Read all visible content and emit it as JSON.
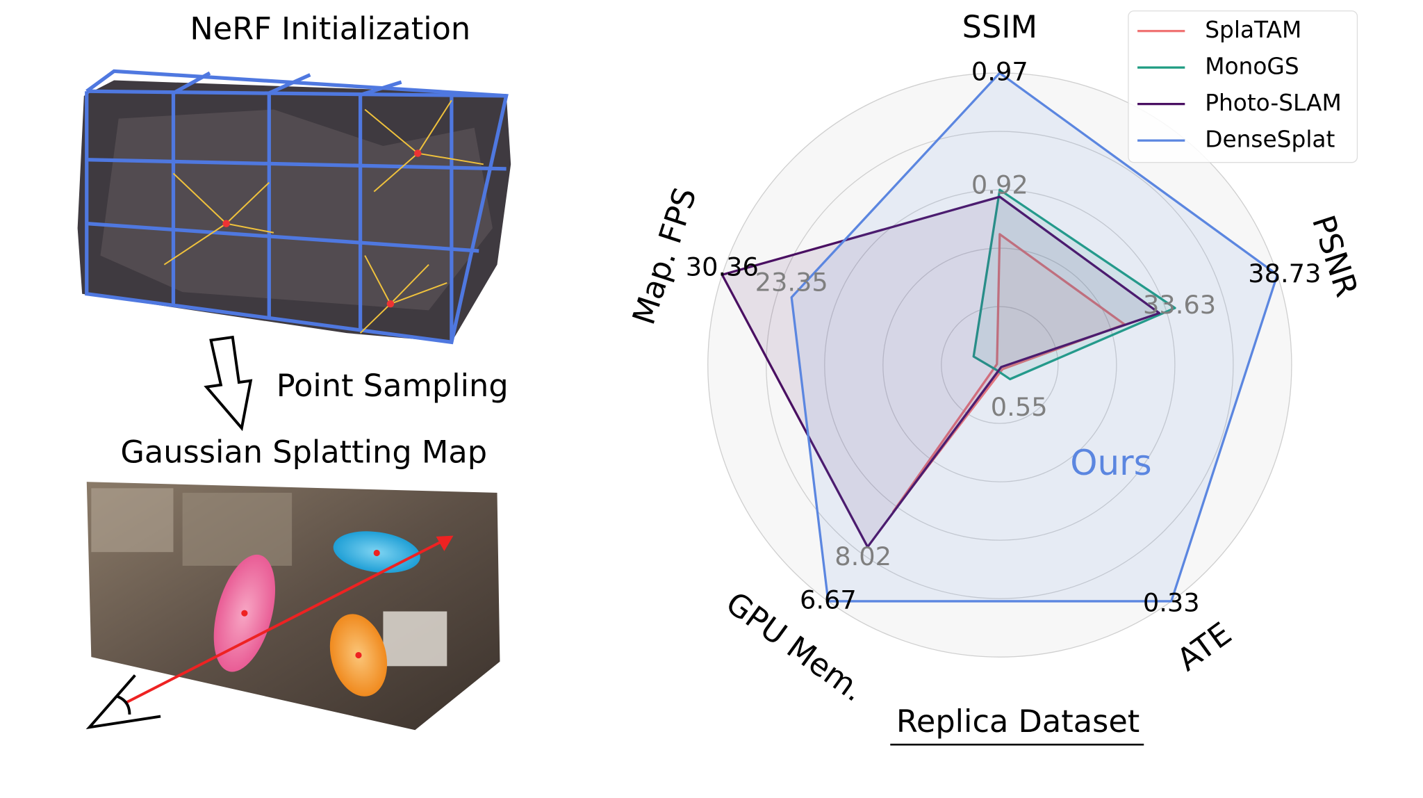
{
  "diagram": {
    "nerf_title": "NeRF Initialization",
    "sampling_label": "Point Sampling",
    "map_title": "Gaussian Splatting Map"
  },
  "chart_data": {
    "type": "radar",
    "title": "Replica Dataset",
    "annotation": "Ours",
    "categories": [
      "SSIM",
      "PSNR",
      "ATE",
      "GPU Mem.",
      "Map. FPS"
    ],
    "rlims": [
      [
        0.845,
        0.97
      ],
      [
        24.9,
        38.73
      ],
      [
        0.564,
        0.33
      ],
      [
        12.54,
        6.67
      ],
      [
        2.32,
        30.36
      ]
    ],
    "grid": true,
    "legend": "upper right",
    "series": [
      {
        "name": "SplaTAM",
        "color": "#f07474",
        "values": [
          0.901,
          31.12,
          0.56,
          8.9,
          2.6
        ]
      },
      {
        "name": "MonoGS",
        "color": "#1f9c82",
        "values": [
          0.92,
          33.63,
          0.55,
          12.42,
          4.96
        ]
      },
      {
        "name": "Photo-SLAM",
        "color": "#4a1062",
        "values": [
          0.917,
          32.85,
          0.562,
          8.02,
          30.36
        ]
      },
      {
        "name": "DenseSplat",
        "color": "#5b86e0",
        "values": [
          0.97,
          38.73,
          0.33,
          6.67,
          23.35
        ]
      }
    ]
  }
}
